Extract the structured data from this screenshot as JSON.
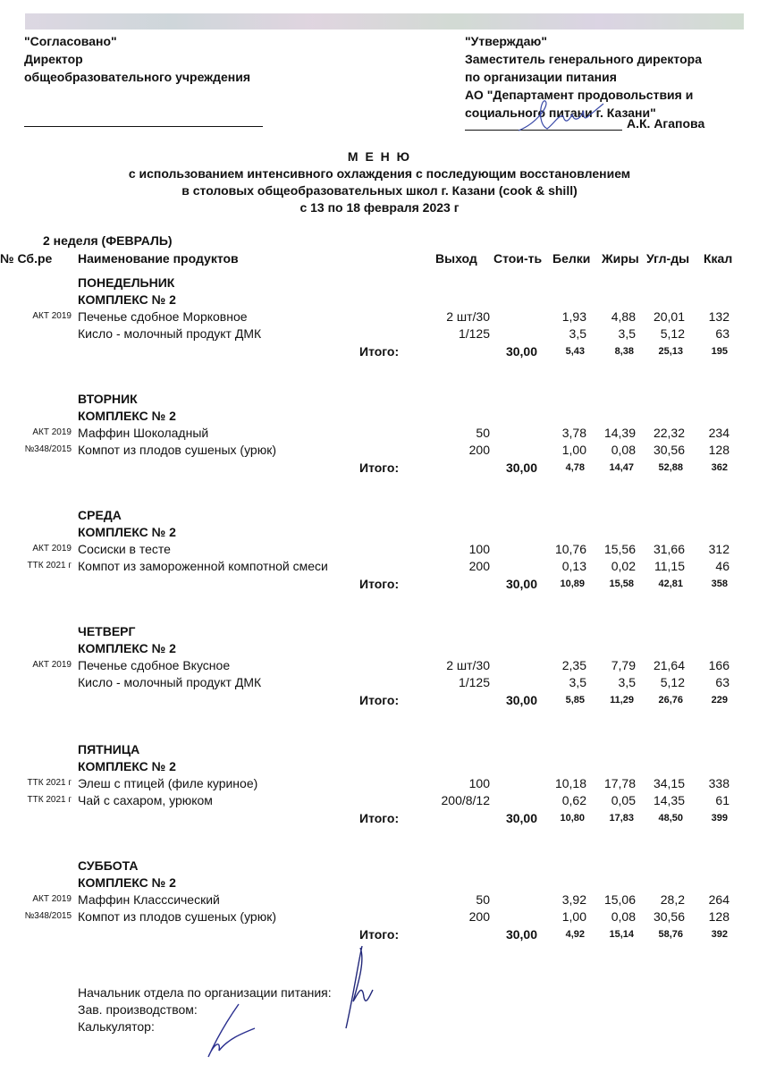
{
  "approval_left": {
    "heading": "\"Согласовано\"",
    "line1": "Директор",
    "line2": "общеобразовательного учреждения"
  },
  "approval_right": {
    "heading": "\"Утверждаю\"",
    "line1": "Заместитель генерального директора",
    "line2": "по организации питания",
    "line3": "АО \"Департамент продовольствия и",
    "line4": "социального питани г. Казани\"",
    "signer": "А.К. Агапова"
  },
  "title": {
    "main": "М Е Н Ю",
    "sub1": "с использованием интенсивного охлаждения с последующим восстановлением",
    "sub2": "в столовых общеобразовательных школ г. Казани (cook & shill)",
    "dates": "с  13  по  18  февраля  2023 г"
  },
  "week": "2 неделя (ФЕВРАЛЬ)",
  "columns": {
    "code": "№ Сб.ре",
    "name": "Наименование продуктов",
    "yield": "Выход",
    "cost": "Стои-ть",
    "protein": "Белки",
    "fat": "Жиры",
    "carbs": "Угл-ды",
    "kcal": "Ккал"
  },
  "days": [
    {
      "day": "ПОНЕДЕЛЬНИК",
      "complex": "КОМПЛЕКС № 2",
      "items": [
        {
          "code": "АКТ 2019",
          "name": "Печенье сдобное Морковное",
          "yield": "2 шт/30",
          "protein": "1,93",
          "fat": "4,88",
          "carbs": "20,01",
          "kcal": "132"
        },
        {
          "code": "",
          "name": "Кисло - молочный продукт ДМК",
          "yield": "1/125",
          "protein": "3,5",
          "fat": "3,5",
          "carbs": "5,12",
          "kcal": "63"
        }
      ],
      "total": {
        "label": "Итого:",
        "cost": "30,00",
        "protein": "5,43",
        "fat": "8,38",
        "carbs": "25,13",
        "kcal": "195"
      }
    },
    {
      "day": "ВТОРНИК",
      "complex": "КОМПЛЕКС № 2",
      "items": [
        {
          "code": "АКТ 2019",
          "name": "Маффин Шоколадный",
          "yield": "50",
          "protein": "3,78",
          "fat": "14,39",
          "carbs": "22,32",
          "kcal": "234"
        },
        {
          "code": "№348/2015",
          "name": "Компот из плодов сушеных (урюк)",
          "yield": "200",
          "protein": "1,00",
          "fat": "0,08",
          "carbs": "30,56",
          "kcal": "128"
        }
      ],
      "total": {
        "label": "Итого:",
        "cost": "30,00",
        "protein": "4,78",
        "fat": "14,47",
        "carbs": "52,88",
        "kcal": "362"
      }
    },
    {
      "day": "СРЕДА",
      "complex": "КОМПЛЕКС № 2",
      "items": [
        {
          "code": "АКТ 2019",
          "name": "Сосиски в тесте",
          "yield": "100",
          "protein": "10,76",
          "fat": "15,56",
          "carbs": "31,66",
          "kcal": "312"
        },
        {
          "code": "ТТК 2021 г",
          "name": "Компот из замороженной компотной смеси",
          "yield": "200",
          "protein": "0,13",
          "fat": "0,02",
          "carbs": "11,15",
          "kcal": "46"
        }
      ],
      "total": {
        "label": "Итого:",
        "cost": "30,00",
        "protein": "10,89",
        "fat": "15,58",
        "carbs": "42,81",
        "kcal": "358"
      }
    },
    {
      "day": "ЧЕТВЕРГ",
      "complex": "КОМПЛЕКС № 2",
      "items": [
        {
          "code": "АКТ 2019",
          "name": "Печенье сдобное Вкусное",
          "yield": "2 шт/30",
          "protein": "2,35",
          "fat": "7,79",
          "carbs": "21,64",
          "kcal": "166"
        },
        {
          "code": "",
          "name": "Кисло - молочный продукт ДМК",
          "yield": "1/125",
          "protein": "3,5",
          "fat": "3,5",
          "carbs": "5,12",
          "kcal": "63"
        }
      ],
      "total": {
        "label": "Итого:",
        "cost": "30,00",
        "protein": "5,85",
        "fat": "11,29",
        "carbs": "26,76",
        "kcal": "229"
      }
    },
    {
      "day": "ПЯТНИЦА",
      "complex": "КОМПЛЕКС № 2",
      "items": [
        {
          "code": "ТТК 2021 г",
          "name": "Элеш с птицей (филе куриное)",
          "yield": "100",
          "protein": "10,18",
          "fat": "17,78",
          "carbs": "34,15",
          "kcal": "338"
        },
        {
          "code": "ТТК 2021 г",
          "name": "Чай с сахаром, урюком",
          "yield": "200/8/12",
          "protein": "0,62",
          "fat": "0,05",
          "carbs": "14,35",
          "kcal": "61"
        }
      ],
      "total": {
        "label": "Итого:",
        "cost": "30,00",
        "protein": "10,80",
        "fat": "17,83",
        "carbs": "48,50",
        "kcal": "399"
      }
    },
    {
      "day": "СУББОТА",
      "complex": "КОМПЛЕКС № 2",
      "items": [
        {
          "code": "АКТ 2019",
          "name": "Маффин Класссический",
          "yield": "50",
          "protein": "3,92",
          "fat": "15,06",
          "carbs": "28,2",
          "kcal": "264"
        },
        {
          "code": "№348/2015",
          "name": "Компот из плодов сушеных (урюк)",
          "yield": "200",
          "protein": "1,00",
          "fat": "0,08",
          "carbs": "30,56",
          "kcal": "128"
        }
      ],
      "total": {
        "label": "Итого:",
        "cost": "30,00",
        "protein": "4,92",
        "fat": "15,14",
        "carbs": "58,76",
        "kcal": "392"
      }
    }
  ],
  "footer": {
    "head": "Начальник отдела по организации питания:",
    "production": "Зав. производством:",
    "calculator": "Калькулятор:"
  },
  "colors": {
    "ink": "#111111",
    "signature": "#2a2f8f",
    "stamp": "#b9c3d8"
  }
}
